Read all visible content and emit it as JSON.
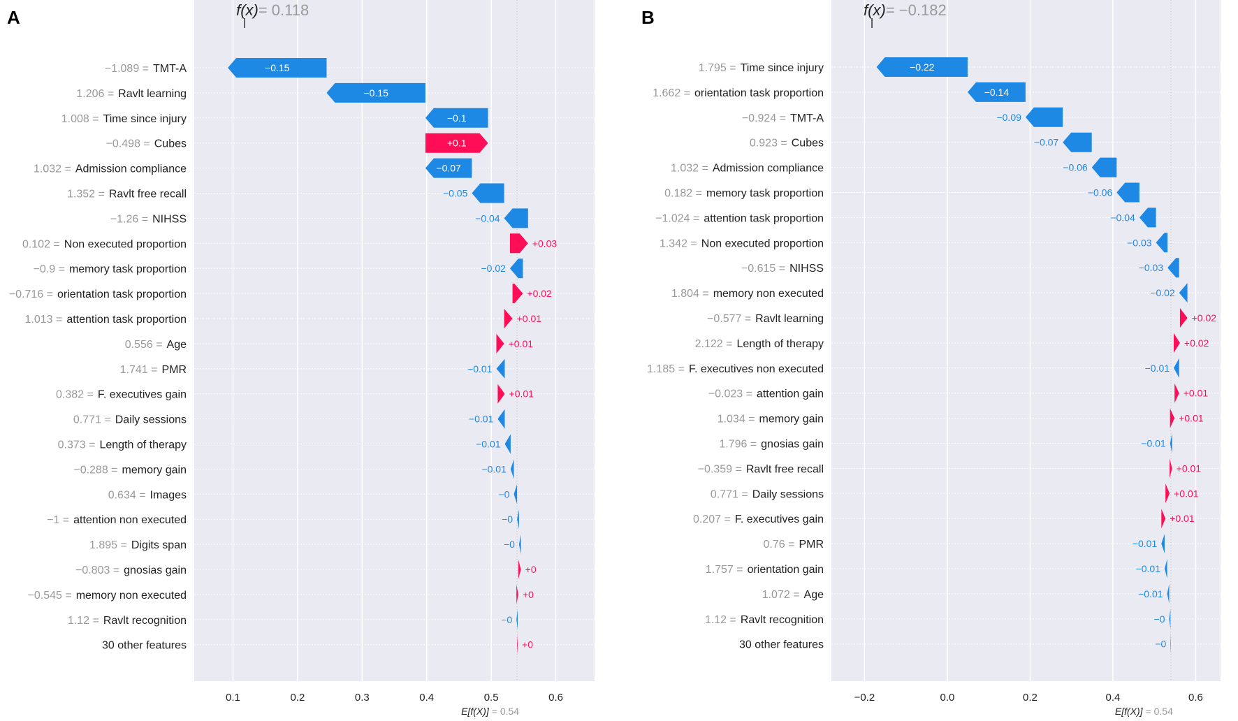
{
  "chart_data": [
    {
      "type": "waterfall",
      "panel_label": "A",
      "fx_symbol": "f(x)",
      "fx_value_text": "= 0.118",
      "fx": 0.118,
      "expected_symbol": "E[f(X)]",
      "expected_value_text": "= 0.54",
      "expected": 0.54,
      "xlim": [
        0.04,
        0.66
      ],
      "xticks": [
        0.1,
        0.2,
        0.3,
        0.4,
        0.5,
        0.6
      ],
      "xtick_labels": [
        "0.1",
        "0.2",
        "0.3",
        "0.4",
        "0.5",
        "0.6"
      ],
      "colors": {
        "positive": "#ff0d57",
        "negative": "#1e88e5",
        "background": "#eaeaf2",
        "grid": "#ffffff",
        "value_text": "#999999"
      },
      "features": [
        {
          "value": "−1.089 =",
          "name": "TMT-A",
          "shap": -0.153,
          "label": "−0.15"
        },
        {
          "value": "1.206 =",
          "name": "Ravlt learning",
          "shap": -0.153,
          "label": "−0.15"
        },
        {
          "value": "1.008 =",
          "name": "Time since injury",
          "shap": -0.097,
          "label": "−0.1"
        },
        {
          "value": "−0.498 =",
          "name": "Cubes",
          "shap": 0.097,
          "label": "+0.1"
        },
        {
          "value": "1.032 =",
          "name": "Admission compliance",
          "shap": -0.072,
          "label": "−0.07"
        },
        {
          "value": "1.352 =",
          "name": "Ravlt free recall",
          "shap": -0.05,
          "label": "−0.05"
        },
        {
          "value": "−1.26 =",
          "name": "NIHSS",
          "shap": -0.037,
          "label": "−0.04"
        },
        {
          "value": "0.102 =",
          "name": "Non executed proportion",
          "shap": 0.028,
          "label": "+0.03"
        },
        {
          "value": "−0.9 =",
          "name": "memory task proportion",
          "shap": -0.02,
          "label": "−0.02"
        },
        {
          "value": "−0.716 =",
          "name": "orientation task proportion",
          "shap": 0.016,
          "label": "+0.02"
        },
        {
          "value": "1.013 =",
          "name": "attention task proportion",
          "shap": 0.013,
          "label": "+0.01"
        },
        {
          "value": "0.556 =",
          "name": "Age",
          "shap": 0.012,
          "label": "+0.01"
        },
        {
          "value": "1.741 =",
          "name": "PMR",
          "shap": -0.013,
          "label": "−0.01"
        },
        {
          "value": "0.382 =",
          "name": "F. executives gain",
          "shap": 0.011,
          "label": "+0.01"
        },
        {
          "value": "0.771 =",
          "name": "Daily sessions",
          "shap": -0.011,
          "label": "−0.01"
        },
        {
          "value": "0.373 =",
          "name": "Length of therapy",
          "shap": -0.009,
          "label": "−0.01"
        },
        {
          "value": "−0.288 =",
          "name": "memory gain",
          "shap": -0.005,
          "label": "−0.01"
        },
        {
          "value": "0.634 =",
          "name": "Images",
          "shap": -0.005,
          "label": "−0"
        },
        {
          "value": "−1 =",
          "name": "attention non executed",
          "shap": -0.003,
          "label": "−0"
        },
        {
          "value": "1.895 =",
          "name": "Digits span",
          "shap": -0.003,
          "label": "−0"
        },
        {
          "value": "−0.803 =",
          "name": "gnosias gain",
          "shap": 0.004,
          "label": "+0"
        },
        {
          "value": "−0.545 =",
          "name": "memory non executed",
          "shap": 0.003,
          "label": "+0"
        },
        {
          "value": "1.12 =",
          "name": "Ravlt recognition",
          "shap": -0.002,
          "label": "−0"
        },
        {
          "value": "",
          "name": "30 other features",
          "shap": 0.001,
          "label": "+0"
        }
      ]
    },
    {
      "type": "waterfall",
      "panel_label": "B",
      "fx_symbol": "f(x)",
      "fx_value_text": "= −0.182",
      "fx": -0.182,
      "expected_symbol": "E[f(X)]",
      "expected_value_text": "= 0.54",
      "expected": 0.54,
      "xlim": [
        -0.28,
        0.66
      ],
      "xticks": [
        -0.2,
        0.0,
        0.2,
        0.4,
        0.6
      ],
      "xtick_labels": [
        "−0.2",
        "0.0",
        "0.2",
        "0.4",
        "0.6"
      ],
      "colors": {
        "positive": "#ff0d57",
        "negative": "#1e88e5",
        "background": "#eaeaf2",
        "grid": "#ffffff",
        "value_text": "#999999"
      },
      "features": [
        {
          "value": "1.795 =",
          "name": "Time since injury",
          "shap": -0.22,
          "label": "−0.22"
        },
        {
          "value": "1.662 =",
          "name": "orientation task proportion",
          "shap": -0.14,
          "label": "−0.14"
        },
        {
          "value": "−0.924 =",
          "name": "TMT-A",
          "shap": -0.09,
          "label": "−0.09"
        },
        {
          "value": "0.923 =",
          "name": "Cubes",
          "shap": -0.07,
          "label": "−0.07"
        },
        {
          "value": "1.032 =",
          "name": "Admission compliance",
          "shap": -0.06,
          "label": "−0.06"
        },
        {
          "value": "0.182 =",
          "name": "memory task proportion",
          "shap": -0.055,
          "label": "−0.06"
        },
        {
          "value": "−1.024 =",
          "name": "attention task proportion",
          "shap": -0.04,
          "label": "−0.04"
        },
        {
          "value": "1.342 =",
          "name": "Non executed proportion",
          "shap": -0.028,
          "label": "−0.03"
        },
        {
          "value": "−0.615 =",
          "name": "NIHSS",
          "shap": -0.028,
          "label": "−0.03"
        },
        {
          "value": "1.804 =",
          "name": "memory non executed",
          "shap": -0.02,
          "label": "−0.02"
        },
        {
          "value": "−0.577 =",
          "name": "Ravlt learning",
          "shap": 0.018,
          "label": "+0.02"
        },
        {
          "value": "2.122 =",
          "name": "Length of therapy",
          "shap": 0.015,
          "label": "+0.02"
        },
        {
          "value": "1.185 =",
          "name": "F. executives non executed",
          "shap": -0.013,
          "label": "−0.01"
        },
        {
          "value": "−0.023 =",
          "name": "attention gain",
          "shap": 0.011,
          "label": "+0.01"
        },
        {
          "value": "1.034 =",
          "name": "memory gain",
          "shap": 0.011,
          "label": "+0.01"
        },
        {
          "value": "1.796 =",
          "name": "gnosias gain",
          "shap": -0.005,
          "label": "−0.01"
        },
        {
          "value": "−0.359 =",
          "name": "Ravlt free recall",
          "shap": 0.006,
          "label": "+0.01"
        },
        {
          "value": "0.771 =",
          "name": "Daily sessions",
          "shap": 0.01,
          "label": "+0.01"
        },
        {
          "value": "0.207 =",
          "name": "F. executives gain",
          "shap": 0.01,
          "label": "+0.01"
        },
        {
          "value": "0.76 =",
          "name": "PMR",
          "shap": -0.008,
          "label": "−0.01"
        },
        {
          "value": "1.757 =",
          "name": "orientation gain",
          "shap": -0.006,
          "label": "−0.01"
        },
        {
          "value": "1.072 =",
          "name": "Age",
          "shap": -0.005,
          "label": "−0.01"
        },
        {
          "value": "1.12 =",
          "name": "Ravlt recognition",
          "shap": -0.003,
          "label": "−0"
        },
        {
          "value": "",
          "name": "30 other features",
          "shap": -0.001,
          "label": "−0"
        }
      ]
    }
  ]
}
